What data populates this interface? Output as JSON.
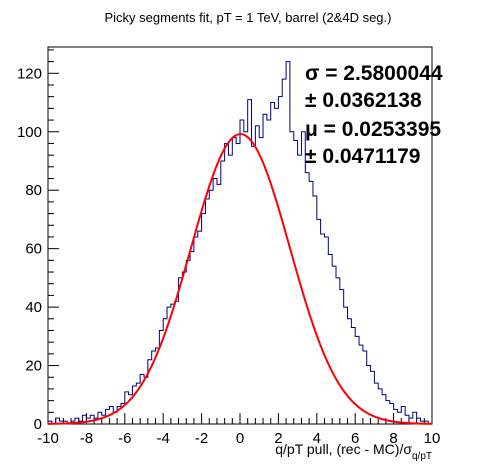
{
  "chart_data": {
    "type": "histogram",
    "title": "Picky segments fit, pT = 1 TeV, barrel (2&4D seg.)",
    "xlabel": "q/pT pull, (rec - MC)/σ",
    "xlabel_subscript": "q/pT",
    "ylabel": "",
    "xlim": [
      -10,
      10
    ],
    "ylim": [
      0,
      129
    ],
    "x_ticks": [
      "-10",
      "-8",
      "-6",
      "-4",
      "-2",
      "0",
      "2",
      "4",
      "6",
      "8",
      "10"
    ],
    "y_ticks": [
      "0",
      "20",
      "40",
      "60",
      "80",
      "100",
      "120"
    ],
    "grid": false,
    "bin_width": 0.2,
    "bin_start": -10,
    "histogram_color": "#000080",
    "fit_color": "#ff0000",
    "counts": [
      1,
      0,
      2,
      1,
      1,
      0,
      1,
      2,
      1,
      3,
      2,
      3,
      2,
      4,
      3,
      5,
      6,
      4,
      6,
      7,
      11,
      10,
      13,
      14,
      17,
      16,
      22,
      25,
      26,
      32,
      36,
      40,
      41,
      42,
      50,
      52,
      56,
      59,
      64,
      66,
      72,
      77,
      80,
      84,
      82,
      90,
      96,
      92,
      98,
      96,
      104,
      100,
      111,
      95,
      102,
      98,
      106,
      104,
      110,
      108,
      112,
      118,
      124,
      100,
      97,
      92,
      100,
      86,
      83,
      78,
      70,
      65,
      64,
      58,
      54,
      50,
      46,
      40,
      36,
      33,
      30,
      27,
      25,
      20,
      18,
      14,
      12,
      10,
      8,
      7,
      5,
      4,
      6,
      3,
      2,
      4,
      2,
      1,
      1,
      0
    ],
    "fit": {
      "function": "gaussian",
      "amplitude": 99.2,
      "mean": 0.0253395,
      "sigma": 2.5800044
    },
    "stats": {
      "sigma_label": "σ = 2.5800044",
      "sigma_error": "± 0.0362138",
      "mu_label": "μ = 0.0253395",
      "mu_error": "± 0.0471179"
    }
  }
}
